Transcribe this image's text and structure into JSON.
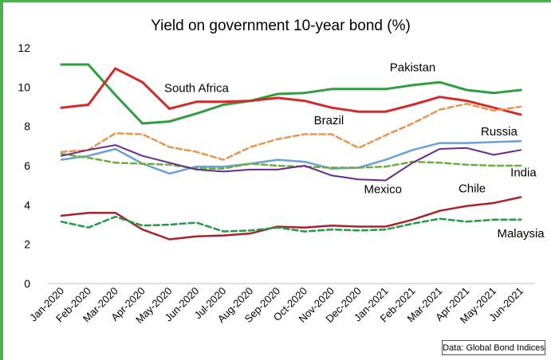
{
  "chart_data": {
    "type": "line",
    "title": "Yield on government 10-year bond (%)",
    "xlabel": "",
    "ylabel": "",
    "ylim": [
      0,
      12
    ],
    "yticks": [
      0,
      2,
      4,
      6,
      8,
      10,
      12
    ],
    "categories": [
      "Jan-2020",
      "Feb-2020",
      "Mar-2020",
      "Apr-2020",
      "May-2020",
      "Jun-2020",
      "Jul-2020",
      "Aug-2020",
      "Sep-2020",
      "Oct-2020",
      "Nov-2020",
      "Dec-2020",
      "Jan-2021",
      "Feb-2021",
      "Mar-2021",
      "Apr-2021",
      "May-2021",
      "Jun-2021"
    ],
    "grid": false,
    "series": [
      {
        "name": "Pakistan",
        "color": "#2e9e3e",
        "dash": false,
        "width": 3,
        "values": [
          11.15,
          11.15,
          9.6,
          8.15,
          8.25,
          8.65,
          9.1,
          9.3,
          9.65,
          9.7,
          9.9,
          9.9,
          9.9,
          10.1,
          10.25,
          9.85,
          9.7,
          9.85
        ]
      },
      {
        "name": "South Africa",
        "color": "#d42a2a",
        "dash": false,
        "width": 3,
        "values": [
          8.95,
          9.1,
          10.95,
          10.25,
          8.9,
          9.25,
          9.25,
          9.3,
          9.45,
          9.3,
          8.95,
          8.75,
          8.75,
          9.1,
          9.5,
          9.3,
          8.95,
          8.6
        ]
      },
      {
        "name": "Brazil",
        "color": "#e8964a",
        "dash": true,
        "width": 2.5,
        "values": [
          6.7,
          6.8,
          7.65,
          7.6,
          6.95,
          6.7,
          6.3,
          6.95,
          7.35,
          7.6,
          7.6,
          6.9,
          7.55,
          8.15,
          8.85,
          9.15,
          8.8,
          9.0
        ]
      },
      {
        "name": "Russia",
        "color": "#6aa0d2",
        "dash": false,
        "width": 2.5,
        "values": [
          6.3,
          6.5,
          6.85,
          6.1,
          5.6,
          5.95,
          5.95,
          6.1,
          6.3,
          6.2,
          5.85,
          5.9,
          6.3,
          6.8,
          7.15,
          7.15,
          7.2,
          7.25
        ]
      },
      {
        "name": "India",
        "color": "#6bb03a",
        "dash": true,
        "width": 2.5,
        "values": [
          6.6,
          6.4,
          6.15,
          6.1,
          6.05,
          5.85,
          5.85,
          6.1,
          6.0,
          5.95,
          5.9,
          5.9,
          5.95,
          6.2,
          6.15,
          6.05,
          6.0,
          6.0
        ]
      },
      {
        "name": "Mexico",
        "color": "#6a2a8c",
        "dash": false,
        "width": 2,
        "values": [
          6.5,
          6.8,
          7.05,
          6.5,
          6.15,
          5.8,
          5.7,
          5.8,
          5.8,
          6.0,
          5.5,
          5.3,
          5.25,
          6.15,
          6.85,
          6.9,
          6.55,
          6.8
        ]
      },
      {
        "name": "Chile",
        "color": "#a8232a",
        "dash": false,
        "width": 2.5,
        "values": [
          3.45,
          3.6,
          3.6,
          2.75,
          2.25,
          2.4,
          2.45,
          2.55,
          2.9,
          2.85,
          2.95,
          2.9,
          2.9,
          3.25,
          3.7,
          3.95,
          4.1,
          4.4
        ]
      },
      {
        "name": "Malaysia",
        "color": "#1f9c4a",
        "dash": true,
        "width": 2.5,
        "values": [
          3.15,
          2.85,
          3.4,
          2.95,
          3.0,
          3.1,
          2.65,
          2.7,
          2.85,
          2.65,
          2.75,
          2.7,
          2.75,
          3.05,
          3.3,
          3.15,
          3.25,
          3.25
        ]
      }
    ],
    "labels": [
      {
        "text": "Pakistan",
        "at_index": 13,
        "value": 10.8
      },
      {
        "text": "South Africa",
        "at_index": 5,
        "value": 9.75
      },
      {
        "text": "Brazil",
        "at_index": 9.9,
        "value": 8.1
      },
      {
        "text": "Russia",
        "at_index": 16.2,
        "value": 7.55
      },
      {
        "text": "India",
        "at_index": 17.1,
        "value": 5.45
      },
      {
        "text": "Mexico",
        "at_index": 11.9,
        "value": 4.6
      },
      {
        "text": "Chile",
        "at_index": 15.2,
        "value": 4.65
      },
      {
        "text": "Malaysia",
        "at_index": 17.0,
        "value": 2.35
      }
    ],
    "source": "Data: Global Bond Indices"
  }
}
